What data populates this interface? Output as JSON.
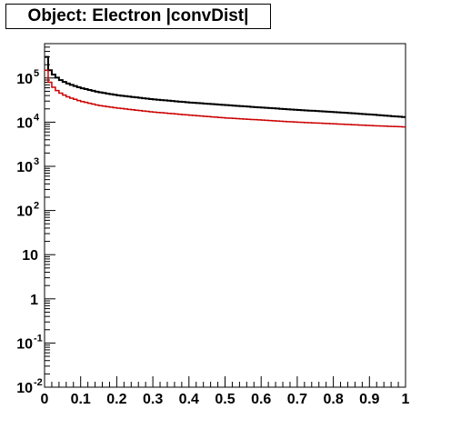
{
  "title": "Object: Electron |convDist|",
  "chart_data": {
    "type": "line",
    "title": "Object: Electron |convDist|",
    "xlabel": "",
    "ylabel": "",
    "xlim": [
      0,
      1
    ],
    "ylim": [
      0.01,
      600000
    ],
    "yscale": "log",
    "grid": false,
    "x_ticks": [
      "0",
      "0.1",
      "0.2",
      "0.3",
      "0.4",
      "0.5",
      "0.6",
      "0.7",
      "0.8",
      "0.9",
      "1"
    ],
    "y_ticks": [
      {
        "value": 0.01,
        "base": "10",
        "exp": "-2"
      },
      {
        "value": 0.1,
        "base": "10",
        "exp": "-1"
      },
      {
        "value": 1,
        "base": "1",
        "exp": ""
      },
      {
        "value": 10,
        "base": "10",
        "exp": ""
      },
      {
        "value": 100,
        "base": "10",
        "exp": "2"
      },
      {
        "value": 1000,
        "base": "10",
        "exp": "3"
      },
      {
        "value": 10000,
        "base": "10",
        "exp": "4"
      },
      {
        "value": 100000,
        "base": "10",
        "exp": "5"
      }
    ],
    "series": [
      {
        "color": "#000000",
        "x": [
          0.0,
          0.005,
          0.01,
          0.015,
          0.02,
          0.03,
          0.04,
          0.05,
          0.07,
          0.1,
          0.15,
          0.2,
          0.3,
          0.4,
          0.5,
          0.6,
          0.7,
          0.8,
          0.9,
          1.0
        ],
        "values": [
          400000,
          300000,
          180000,
          150000,
          130000,
          110000,
          95000,
          85000,
          72000,
          60000,
          48000,
          41000,
          33000,
          28000,
          24500,
          21500,
          19000,
          17000,
          15000,
          13000
        ]
      },
      {
        "color": "#cc0000",
        "x": [
          0.0,
          0.005,
          0.01,
          0.015,
          0.02,
          0.03,
          0.04,
          0.05,
          0.07,
          0.1,
          0.15,
          0.2,
          0.3,
          0.4,
          0.5,
          0.6,
          0.7,
          0.8,
          0.9,
          1.0
        ],
        "values": [
          200000,
          150000,
          95000,
          80000,
          68000,
          56000,
          48000,
          43000,
          36000,
          30000,
          24000,
          21000,
          17000,
          14500,
          12500,
          11200,
          10000,
          9200,
          8400,
          7800
        ]
      }
    ]
  }
}
